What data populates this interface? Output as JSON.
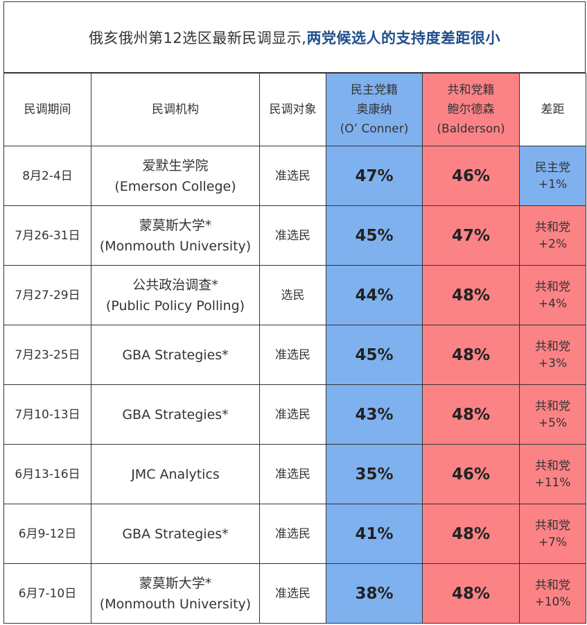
{
  "title": {
    "main": "俄亥俄州第12选区最新民调显示,",
    "emphasis": "两党候选人的支持度差距很小"
  },
  "colors": {
    "democrat": "#7fb1ef",
    "republican": "#fb8386",
    "title_emphasis": "#1f4e8c"
  },
  "headers": {
    "period": "民调期间",
    "org": "民调机构",
    "target": "民调对象",
    "dem": [
      "民主党籍",
      "奥康纳",
      "(O’ Conner)"
    ],
    "rep": [
      "共和党籍",
      "鲍尔德森",
      "(Balderson)"
    ],
    "diff": "差距"
  },
  "chart_data": {
    "type": "table",
    "columns": [
      "民调期间",
      "民调机构",
      "民调对象",
      "民主党籍 奥康纳 (O’ Conner)",
      "共和党籍 鲍尔德森 (Balderson)",
      "差距"
    ],
    "rows": [
      {
        "period": "8月2-4日",
        "org": [
          "爱默生学院",
          "(Emerson College)"
        ],
        "target": "准选民",
        "dem": "47%",
        "rep": "46%",
        "diff_party": "民主党",
        "diff_value": "+1%",
        "leader": "dem"
      },
      {
        "period": "7月26-31日",
        "org": [
          "蒙莫斯大学*",
          "(Monmouth University)"
        ],
        "target": "准选民",
        "dem": "45%",
        "rep": "47%",
        "diff_party": "共和党",
        "diff_value": "+2%",
        "leader": "rep"
      },
      {
        "period": "7月27-29日",
        "org": [
          "公共政治调查*",
          "(Public Policy Polling)"
        ],
        "target": "选民",
        "dem": "44%",
        "rep": "48%",
        "diff_party": "共和党",
        "diff_value": "+4%",
        "leader": "rep"
      },
      {
        "period": "7月23-25日",
        "org": [
          "GBA Strategies*"
        ],
        "target": "准选民",
        "dem": "45%",
        "rep": "48%",
        "diff_party": "共和党",
        "diff_value": "+3%",
        "leader": "rep"
      },
      {
        "period": "7月10-13日",
        "org": [
          "GBA Strategies*"
        ],
        "target": "准选民",
        "dem": "43%",
        "rep": "48%",
        "diff_party": "共和党",
        "diff_value": "+5%",
        "leader": "rep"
      },
      {
        "period": "6月13-16日",
        "org": [
          "JMC Analytics"
        ],
        "target": "准选民",
        "dem": "35%",
        "rep": "46%",
        "diff_party": "共和党",
        "diff_value": "+11%",
        "leader": "rep"
      },
      {
        "period": "6月9-12日",
        "org": [
          "GBA Strategies*"
        ],
        "target": "准选民",
        "dem": "41%",
        "rep": "48%",
        "diff_party": "共和党",
        "diff_value": "+7%",
        "leader": "rep"
      },
      {
        "period": "6月7-10日",
        "org": [
          "蒙莫斯大学*",
          "(Monmouth University)"
        ],
        "target": "准选民",
        "dem": "38%",
        "rep": "48%",
        "diff_party": "共和党",
        "diff_value": "+10%",
        "leader": "rep"
      }
    ]
  }
}
